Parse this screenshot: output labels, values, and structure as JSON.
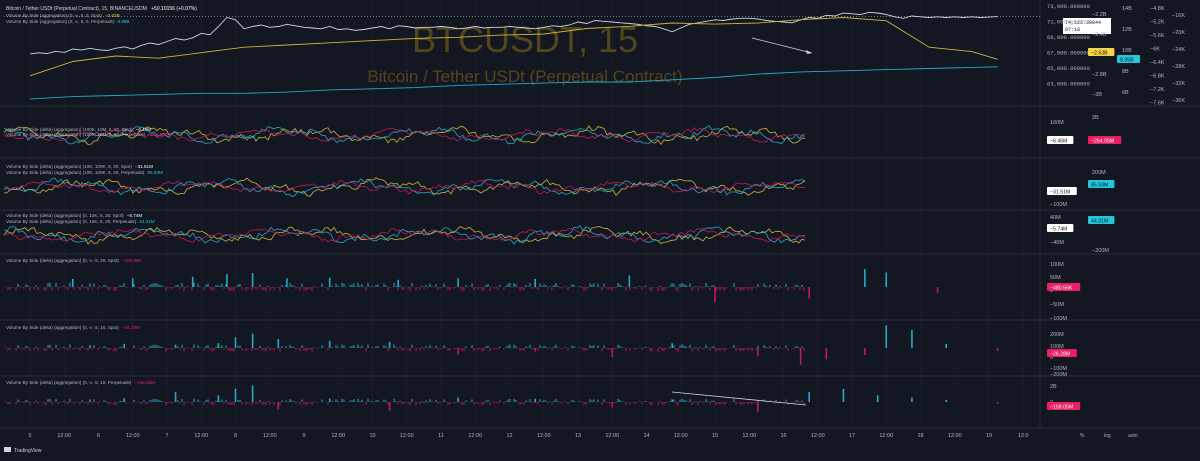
{
  "colors": {
    "background": "#131722",
    "grid": "#1e222d",
    "separator": "#2a2e39",
    "text": "#b2b5be",
    "price_line": "#d1d4dc",
    "spot": "#c9b33a",
    "perp": "#26a8c6",
    "spot_delta": "#c2185b",
    "watermark": "#5a4a1a",
    "price_tag_bg": "#ffffff",
    "tag_yellow": "#f5d547",
    "tag_cyan": "#26c6da",
    "tag_pink": "#e91e63",
    "tag_white": "#ffffff"
  },
  "header": {
    "title": "Bitcoin / Tether USDt (Perpetual Contract), 15, BINANCEUSDM",
    "change": "+50.10156 (+0.07%)"
  },
  "watermark": {
    "symbol": "BTCUSDT, 15",
    "description": "Bitcoin / Tether USDt (Perpetual Contract)"
  },
  "panes": [
    {
      "id": "price",
      "legends": [
        {
          "text": "Volume By Side (aggregation) (0, ∞, 5, 0, Spot)",
          "value": "−2.63B",
          "color": "#f5d547"
        },
        {
          "text": "Volume By Side (aggregation) (0, ∞, 5, 0, Perpetuals)",
          "value": "8.95B",
          "color": "#26c6da"
        }
      ],
      "price_axis": [
        "73,000.000000",
        "71,000.000000",
        "69,000.000000",
        "67,000.000000",
        "65,000.000000",
        "63,000.000000"
      ],
      "price_tag": {
        "value": "74,126.39844",
        "countdown": "07:18"
      },
      "axis2": [
        "−2.2B",
        "−2.4B",
        "−2.6B",
        "−2.8B",
        "−3B"
      ],
      "axis3": [
        "14B",
        "12B",
        "10B",
        "8B",
        "6B"
      ],
      "axis4": [
        "−4.8K",
        "−5.2K",
        "−5.6K",
        "−6K",
        "−6.4K",
        "−6.8K",
        "−7.2K",
        "−7.6K"
      ],
      "axis5": [
        "−16K",
        "−20K",
        "−24K",
        "−28K",
        "−32K",
        "−36K"
      ],
      "tags": [
        {
          "value": "−2.63B",
          "color": "#f5d547"
        },
        {
          "value": "8.95B",
          "color": "#26c6da"
        }
      ]
    },
    {
      "id": "delta1",
      "legends": [
        {
          "text": "Volume By Side (delta) (aggregation) (100K, 10M, 5, 20, Spot)",
          "value": "−6.46M",
          "color": "#ffffff"
        },
        {
          "text": "Volume By Side (delta) (aggregation) (100K, 10M, 5, 20, Perpetuals)",
          "value": "−264.05M",
          "color": "#e91e63"
        }
      ],
      "axis": [
        "100M",
        "0"
      ],
      "axis2": [
        "2B"
      ],
      "tags": [
        {
          "value": "−6.46M",
          "color": "#ffffff"
        },
        {
          "value": "−264.05M",
          "color": "#e91e63"
        }
      ]
    },
    {
      "id": "delta2",
      "legends": [
        {
          "text": "Volume By Side (delta) (aggregation) (10K, 100K, 5, 20, Spot)",
          "value": "−31.51M",
          "color": "#ffffff"
        },
        {
          "text": "Volume By Side (delta) (aggregation) (10K, 100K, 5, 20, Perpetuals)",
          "value": "85.93M",
          "color": "#26c6da"
        }
      ],
      "axis": [
        "0",
        "−100M"
      ],
      "axis2": [
        "200M"
      ],
      "tags": [
        {
          "value": "−31.51M",
          "color": "#ffffff"
        },
        {
          "value": "85.93M",
          "color": "#26c6da"
        }
      ]
    },
    {
      "id": "delta3",
      "legends": [
        {
          "text": "Volume By Side (delta) (aggregation) (0, 10K, 5, 20, Spot)",
          "value": "−5.74M",
          "color": "#ffffff"
        },
        {
          "text": "Volume By Side (delta) (aggregation) (0, 10K, 5, 20, Perpetuals)",
          "value": "44.31M",
          "color": "#26c6da"
        }
      ],
      "axis": [
        "40M",
        "0",
        "−40M"
      ],
      "axis2": [
        "−200M"
      ],
      "tags": [
        {
          "value": "−5.74M",
          "color": "#ffffff"
        },
        {
          "value": "44.31M",
          "color": "#26c6da"
        }
      ]
    },
    {
      "id": "hist1",
      "legends": [
        {
          "text": "Volume By Side (delta) (aggregation) (0, ∞, 5, 20, Spot)",
          "value": "−480.56K",
          "color": "#e91e63"
        }
      ],
      "axis": [
        "100M",
        "50M",
        "0",
        "−50M",
        "−100M"
      ],
      "tags": [
        {
          "value": "−480.56K",
          "color": "#e91e63"
        }
      ]
    },
    {
      "id": "hist2",
      "legends": [
        {
          "text": "Volume By Side (delta) (aggregation) (0, ∞, 5, 10, Spot)",
          "value": "−26.28M",
          "color": "#e91e63"
        }
      ],
      "axis": [
        "200M",
        "100M",
        "0",
        "−100M",
        "−200M"
      ],
      "tags": [
        {
          "value": "−26.28M",
          "color": "#e91e63"
        }
      ]
    },
    {
      "id": "hist3",
      "legends": [
        {
          "text": "Volume By Side (delta) (aggregation) (0, ∞, 5, 10, Perpetuals)",
          "value": "−158.05M",
          "color": "#e91e63"
        }
      ],
      "axis": [
        "2B",
        "0"
      ],
      "tags": [
        {
          "value": "−158.05M",
          "color": "#e91e63"
        }
      ]
    }
  ],
  "time_axis": [
    "5",
    "12:00",
    "6",
    "12:00",
    "7",
    "12:00",
    "8",
    "12:00",
    "9",
    "12:00",
    "10",
    "12:00",
    "11",
    "12:00",
    "12",
    "12:00",
    "13",
    "12:00",
    "14",
    "12:00",
    "15",
    "12:00",
    "16",
    "12:00",
    "17",
    "12:00",
    "18",
    "12:00",
    "19",
    "12:0"
  ],
  "right_toolbar": [
    "%",
    "log",
    "auto"
  ],
  "footer": {
    "brand": "TradingView"
  },
  "chart_data": [
    {
      "type": "line",
      "series": [
        {
          "name": "Bitcoin / Tether USDt (Perpetual Contract)",
          "x": [
            0,
            2,
            4,
            6,
            8,
            10,
            12,
            14,
            16,
            18,
            20,
            22,
            24,
            26,
            28,
            30,
            32,
            34,
            36,
            38,
            40,
            42,
            44,
            46,
            48,
            50,
            52,
            54,
            56,
            58,
            60,
            62,
            64,
            66,
            68,
            70,
            72,
            74,
            76,
            78,
            80,
            82,
            84,
            86,
            88,
            90,
            92,
            94,
            96,
            98,
            100,
            102,
            104,
            106,
            108,
            110,
            112,
            114,
            116,
            118,
            120,
            122,
            124,
            126,
            128,
            130,
            132,
            134,
            136,
            138,
            140,
            142,
            144,
            146,
            148,
            150,
            152,
            154,
            156,
            158,
            160,
            162,
            164,
            166,
            168,
            170,
            172,
            174,
            176,
            178,
            180,
            182,
            184,
            186,
            188,
            190,
            192,
            194,
            196,
            198,
            200,
            202,
            204,
            206,
            208,
            210,
            212,
            214,
            216,
            218,
            220,
            222,
            224,
            226
          ],
          "values": [
            69150,
            69300,
            69200,
            69500,
            69350,
            69800,
            69650,
            69900,
            69700,
            69600,
            69900,
            70100,
            69800,
            70300,
            70600,
            70400,
            70800,
            71200,
            71000,
            71300,
            71900,
            71700,
            72800,
            74000,
            73700,
            72500,
            72800,
            73000,
            72700,
            72800,
            73100,
            72900,
            72700,
            72600,
            72500,
            72800,
            72400,
            72500,
            72300,
            72400,
            72600,
            72800,
            72500,
            72900,
            72800,
            72600,
            72700,
            72700,
            72800,
            72700,
            72500,
            72600,
            72800,
            72600,
            72700,
            72700,
            72800,
            72700,
            72600,
            72500,
            72700,
            72900,
            72800,
            73000,
            73400,
            73200,
            73600,
            73500,
            73400,
            73300,
            73200,
            73100,
            72900,
            72800,
            72500,
            72100,
            72600,
            73100,
            73300,
            73500,
            73700,
            73600,
            73800,
            73900,
            73900,
            73800,
            73600,
            73500,
            73400,
            73300,
            73700,
            74000,
            73900,
            74300,
            74200,
            74600,
            74500,
            74400,
            74700,
            74600,
            74400,
            74100,
            73900,
            74200,
            74100,
            74000,
            74100,
            74000,
            74100,
            74000,
            74100,
            74000,
            74050,
            74126
          ]
        },
        {
          "name": "Volume By Side (aggregation) (0, ∞, 5, 0, Spot)",
          "x": [
            0,
            10,
            20,
            30,
            40,
            50,
            60,
            70,
            80,
            90,
            100,
            110,
            120,
            130,
            140,
            150,
            160,
            170,
            180,
            190,
            200,
            210,
            220,
            226
          ],
          "values": [
            -2.78,
            -2.65,
            -2.6,
            -2.62,
            -2.57,
            -2.52,
            -2.5,
            -2.48,
            -2.46,
            -2.44,
            -2.43,
            -2.41,
            -2.4,
            -2.35,
            -2.33,
            -2.3,
            -2.31,
            -2.3,
            -2.27,
            -2.25,
            -2.28,
            -2.52,
            -2.56,
            -2.63
          ]
        },
        {
          "name": "Volume By Side (aggregation) (0, ∞, 5, 0, Perpetuals)",
          "x": [
            0,
            10,
            20,
            30,
            40,
            50,
            60,
            70,
            80,
            90,
            100,
            110,
            120,
            130,
            140,
            150,
            160,
            170,
            180,
            190,
            200,
            210,
            220,
            226
          ],
          "values": [
            6.1,
            6.3,
            6.4,
            6.5,
            6.6,
            6.6,
            6.7,
            6.9,
            7.0,
            7.1,
            7.3,
            7.4,
            7.5,
            7.6,
            7.6,
            7.8,
            8.0,
            8.3,
            8.5,
            8.6,
            8.7,
            8.8,
            8.9,
            8.95
          ]
        }
      ]
    },
    {
      "type": "bar",
      "series": [
        {
          "name": "Volume By Side (delta) (aggregation) (0, ∞, 5, 20, Spot)",
          "x": [
            10,
            24,
            38,
            46,
            52,
            60,
            70,
            86,
            100,
            118,
            140,
            160,
            182,
            195,
            200,
            212,
            226
          ],
          "values": [
            28,
            30,
            35,
            45,
            48,
            30,
            32,
            25,
            30,
            28,
            40,
            -52,
            -40,
            62,
            50,
            -20,
            -0.48
          ]
        }
      ]
    },
    {
      "type": "bar",
      "series": [
        {
          "name": "Volume By Side (delta) (aggregation) (0, ∞, 5, 10, Spot)",
          "x": [
            14,
            22,
            34,
            44,
            48,
            52,
            58,
            70,
            84,
            100,
            118,
            136,
            150,
            170,
            180,
            186,
            195,
            200,
            206,
            214,
            226
          ],
          "values": [
            18,
            35,
            28,
            40,
            90,
            120,
            75,
            60,
            52,
            -55,
            -30,
            -75,
            40,
            -70,
            -140,
            -95,
            -60,
            190,
            150,
            35,
            -26.28
          ]
        }
      ]
    },
    {
      "type": "bar",
      "series": [
        {
          "name": "Volume By Side (delta) (aggregation) (0, ∞, 5, 10, Perpetuals)",
          "x": [
            14,
            22,
            34,
            44,
            48,
            52,
            58,
            70,
            84,
            100,
            118,
            136,
            150,
            170,
            182,
            190,
            198,
            206,
            214,
            226
          ],
          "values": [
            0.15,
            0.35,
            0.9,
            0.6,
            1.2,
            1.5,
            -0.7,
            0.3,
            -0.8,
            0.4,
            0.3,
            -0.5,
            0.2,
            -0.9,
            0.9,
            1.2,
            0.6,
            0.4,
            0.2,
            -0.158
          ]
        }
      ]
    }
  ]
}
